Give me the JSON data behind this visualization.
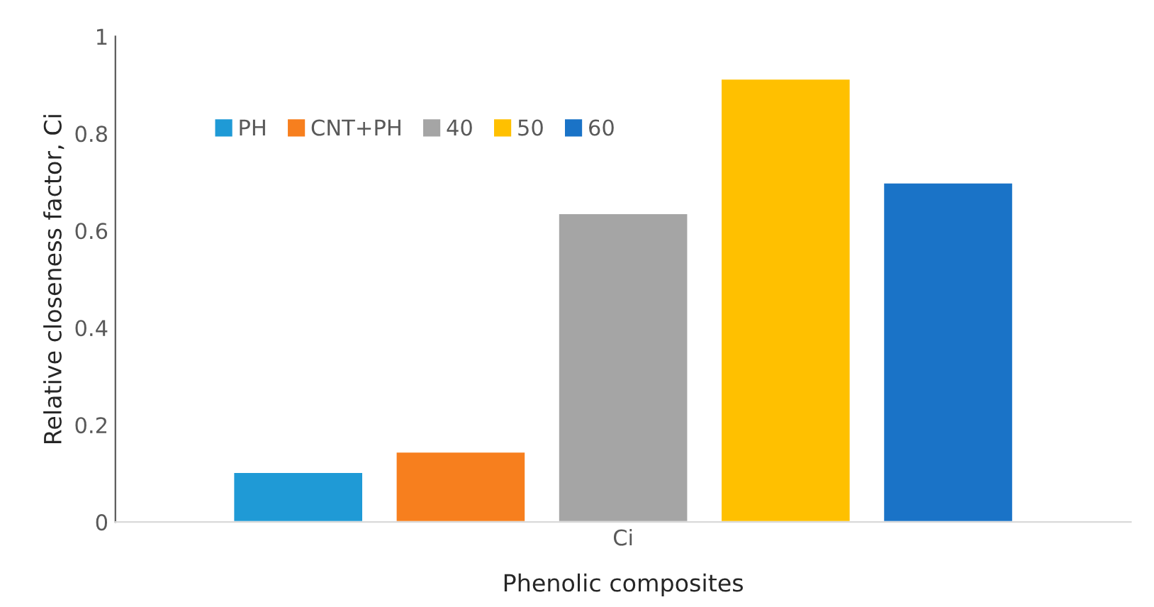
{
  "chart_data": {
    "type": "bar",
    "xlabel": "Phenolic composites",
    "ylabel": "Relative closeness factor, Ci",
    "categories": [
      "Ci"
    ],
    "series": [
      {
        "name": "PH",
        "color": "#1f9ad6",
        "values": [
          0.103
        ]
      },
      {
        "name": "CNT+PH",
        "color": "#f77f1e",
        "values": [
          0.145
        ]
      },
      {
        "name": "40",
        "color": "#a5a5a5",
        "values": [
          0.636
        ]
      },
      {
        "name": "50",
        "color": "#ffc000",
        "values": [
          0.913
        ]
      },
      {
        "name": "60",
        "color": "#1a73c7",
        "values": [
          0.699
        ]
      }
    ],
    "ylim": [
      0,
      1
    ],
    "yticks": [
      0,
      0.2,
      0.4,
      0.6,
      0.8,
      1
    ],
    "grid": false,
    "legend": "top left"
  }
}
